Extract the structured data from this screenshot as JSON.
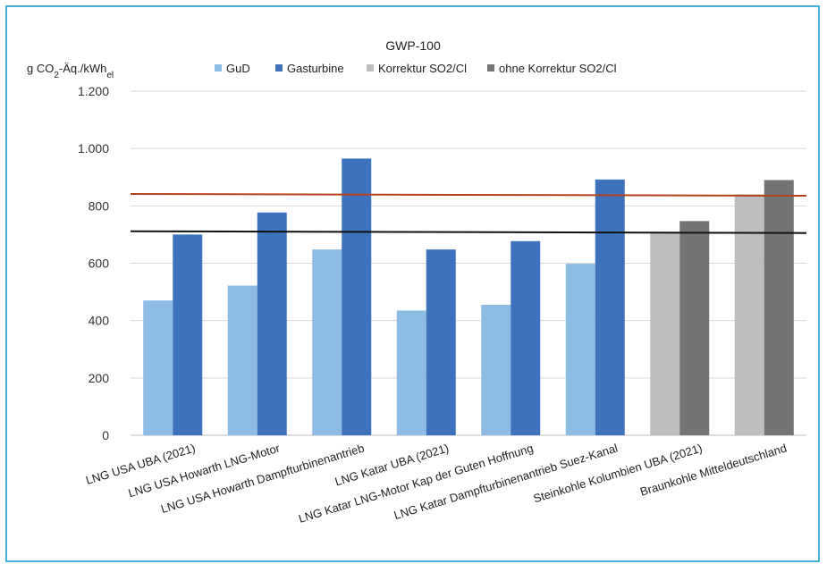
{
  "chart_data": {
    "type": "bar",
    "title": "GWP-100",
    "ylabel": {
      "prefix": "g CO",
      "sub1": "2",
      "mid": "-Äq./kWh",
      "sub2": "el"
    },
    "ylim": [
      0,
      1200
    ],
    "yticks": [
      {
        "value": 0,
        "label": "0"
      },
      {
        "value": 200,
        "label": "200"
      },
      {
        "value": 400,
        "label": "400"
      },
      {
        "value": 600,
        "label": "600"
      },
      {
        "value": 800,
        "label": "800"
      },
      {
        "value": 1000,
        "label": "1.000"
      },
      {
        "value": 1200,
        "label": "1.200"
      }
    ],
    "grid": true,
    "legend_position": "top",
    "categories": [
      "LNG USA UBA (2021)",
      "LNG USA Howarth LNG-Motor",
      "LNG USA Howarth Dampfturbinenantrieb",
      "LNG Katar UBA (2021)",
      "LNG Katar LNG-Motor Kap der Guten Hoffnung",
      "LNG Katar Dampfturbinenantrieb Suez-Kanal",
      "Steinkohle Kolumbien UBA (2021)",
      "Braunkohle Mitteldeutschland"
    ],
    "series": [
      {
        "name": "GuD",
        "color": "#8dbbe3",
        "values": [
          470,
          522,
          648,
          435,
          455,
          598,
          null,
          null
        ]
      },
      {
        "name": "Gasturbine",
        "color": "#3f72bc",
        "values": [
          700,
          777,
          965,
          648,
          677,
          892,
          null,
          null
        ]
      },
      {
        "name": "Korrektur SO2/Cl",
        "color": "#bdbebf",
        "values": [
          null,
          null,
          null,
          null,
          null,
          null,
          710,
          840
        ]
      },
      {
        "name": "ohne Korrektur SO2/Cl",
        "color": "#727476",
        "values": [
          null,
          null,
          null,
          null,
          null,
          null,
          747,
          890
        ]
      }
    ],
    "reference_lines": [
      {
        "value": 710,
        "color": "#111111"
      },
      {
        "value": 840,
        "color": "#b5411c"
      }
    ]
  }
}
